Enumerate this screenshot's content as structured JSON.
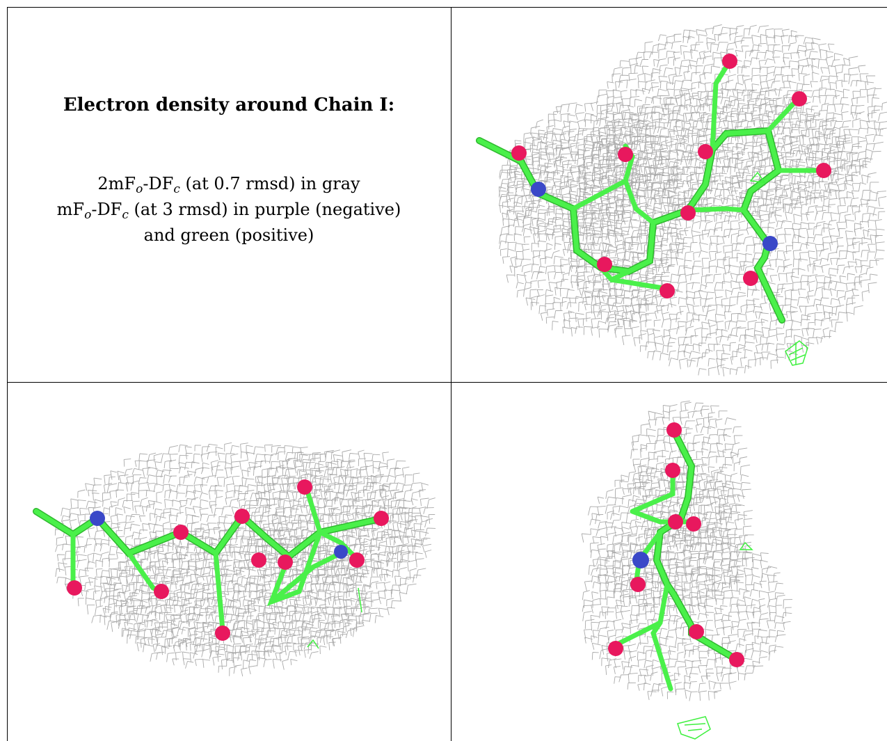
{
  "text_panel": {
    "title": "Electron density around Chain I:",
    "line1": {
      "pre": "2mF",
      "sub1": "o",
      "mid": "-DF",
      "sub2": "c",
      "post": " (at 0.7 rmsd) in gray"
    },
    "line2": {
      "pre": "mF",
      "sub1": "o",
      "mid": "-DF",
      "sub2": "c",
      "post": " (at 3 rmsd) in purple (negative)"
    },
    "line3": "and green (positive)"
  },
  "colors": {
    "mesh": "#a9a9a9",
    "bond": "#3ef03e",
    "oxygen": "#e8185e",
    "nitrogen": "#3a48c8",
    "positive_density": "#3ef03e"
  },
  "panels": [
    {
      "name": "density-view-top-right",
      "icon": "molecule-mesh-icon"
    },
    {
      "name": "density-view-bottom-left",
      "icon": "molecule-mesh-icon"
    },
    {
      "name": "density-view-bottom-right",
      "icon": "molecule-mesh-icon"
    }
  ]
}
